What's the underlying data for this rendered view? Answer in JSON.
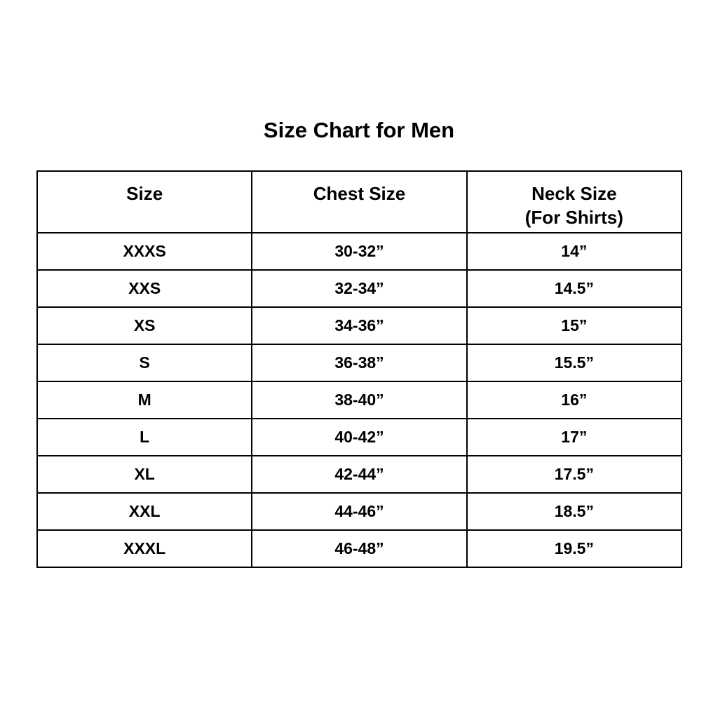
{
  "title": "Size Chart for Men",
  "columns": {
    "size": "Size",
    "chest": "Chest Size",
    "neck": "Neck Size",
    "neck_sub": "(For Shirts)"
  },
  "rows": [
    {
      "size": "XXXS",
      "chest": "30-32”",
      "neck": "14”"
    },
    {
      "size": "XXS",
      "chest": "32-34”",
      "neck": "14.5”"
    },
    {
      "size": "XS",
      "chest": "34-36”",
      "neck": "15”"
    },
    {
      "size": "S",
      "chest": "36-38”",
      "neck": "15.5”"
    },
    {
      "size": "M",
      "chest": "38-40”",
      "neck": "16”"
    },
    {
      "size": "L",
      "chest": "40-42”",
      "neck": "17”"
    },
    {
      "size": "XL",
      "chest": "42-44”",
      "neck": "17.5”"
    },
    {
      "size": "XXL",
      "chest": "44-46”",
      "neck": "18.5”"
    },
    {
      "size": "XXXL",
      "chest": "46-48”",
      "neck": "19.5”"
    }
  ]
}
